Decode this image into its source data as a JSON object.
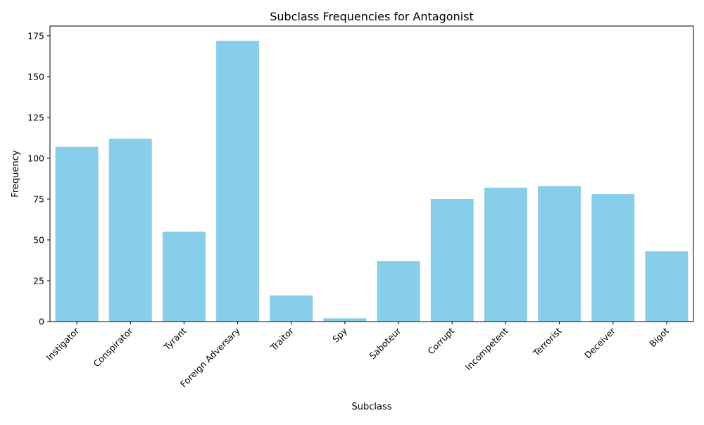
{
  "chart_data": {
    "type": "bar",
    "title": "Subclass Frequencies for Antagonist",
    "xlabel": "Subclass",
    "ylabel": "Frequency",
    "categories": [
      "Instigator",
      "Conspirator",
      "Tyrant",
      "Foreign Adversary",
      "Traitor",
      "Spy",
      "Saboteur",
      "Corrupt",
      "Incompetent",
      "Terrorist",
      "Deceiver",
      "Bigot"
    ],
    "values": [
      107,
      112,
      55,
      172,
      16,
      2,
      37,
      75,
      82,
      83,
      78,
      43
    ],
    "ylim": [
      0,
      181
    ],
    "yticks": [
      0,
      25,
      50,
      75,
      100,
      125,
      150,
      175
    ],
    "grid": false,
    "bar_color": "#87ceeb"
  }
}
